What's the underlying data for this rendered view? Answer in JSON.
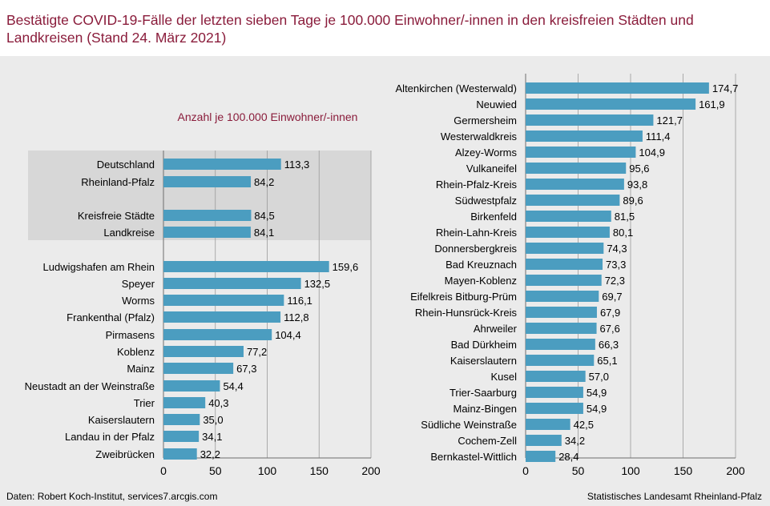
{
  "header": {
    "title": "Bestätigte COVID-19-Fälle der letzten sieben Tage je 100.000 Einwohner/-innen in den kreisfreien Städten und Landkreisen (Stand 24. März 2021)"
  },
  "footer": {
    "source": "Daten: Robert Koch-Institut, services7.arcgis.com",
    "publisher": "Statistisches Landesamt Rheinland-Pfalz"
  },
  "colors": {
    "bar": "#4b9dc0",
    "title": "#8a1c3b",
    "highlight_box": "#d7d7d7",
    "grid": "#9a9a9a"
  },
  "chart_data": [
    {
      "type": "bar",
      "orientation": "horizontal",
      "title": "Anzahl je 100.000 Einwohner/-innen",
      "xlim": [
        0,
        200
      ],
      "xticks": [
        0,
        50,
        100,
        150,
        200
      ],
      "grid": true,
      "groups": [
        {
          "highlighted": true,
          "categories": [
            "Deutschland",
            "Rheinland-Pfalz"
          ],
          "values": [
            113.3,
            84.2
          ]
        },
        {
          "highlighted": true,
          "categories": [
            "Kreisfreie Städte",
            "Landkreise"
          ],
          "values": [
            84.5,
            84.1
          ]
        },
        {
          "highlighted": false,
          "categories": [
            "Ludwigshafen am Rhein",
            "Speyer",
            "Worms",
            "Frankenthal (Pfalz)",
            "Pirmasens",
            "Koblenz",
            "Mainz",
            "Neustadt an der Weinstraße",
            "Trier",
            "Kaiserslautern",
            "Landau in der Pfalz",
            "Zweibrücken"
          ],
          "values": [
            159.6,
            132.5,
            116.1,
            112.8,
            104.4,
            77.2,
            67.3,
            54.4,
            40.3,
            35.0,
            34.1,
            32.2
          ]
        }
      ]
    },
    {
      "type": "bar",
      "orientation": "horizontal",
      "xlim": [
        0,
        200
      ],
      "xticks": [
        0,
        50,
        100,
        150,
        200
      ],
      "grid": true,
      "groups": [
        {
          "highlighted": false,
          "categories": [
            "Altenkirchen (Westerwald)",
            "Neuwied",
            "Germersheim",
            "Westerwaldkreis",
            "Alzey-Worms",
            "Vulkaneifel",
            "Rhein-Pfalz-Kreis",
            "Südwestpfalz",
            "Birkenfeld",
            "Rhein-Lahn-Kreis",
            "Donnersbergkreis",
            "Bad Kreuznach",
            "Mayen-Koblenz",
            "Eifelkreis Bitburg-Prüm",
            "Rhein-Hunsrück-Kreis",
            "Ahrweiler",
            "Bad Dürkheim",
            "Kaiserslautern",
            "Kusel",
            "Trier-Saarburg",
            "Mainz-Bingen",
            "Südliche Weinstraße",
            "Cochem-Zell",
            "Bernkastel-Wittlich"
          ],
          "values": [
            174.7,
            161.9,
            121.7,
            111.4,
            104.9,
            95.6,
            93.8,
            89.6,
            81.5,
            80.1,
            74.3,
            73.3,
            72.3,
            69.7,
            67.9,
            67.6,
            66.3,
            65.1,
            57.0,
            54.9,
            54.9,
            42.5,
            34.2,
            28.4
          ]
        }
      ]
    }
  ]
}
